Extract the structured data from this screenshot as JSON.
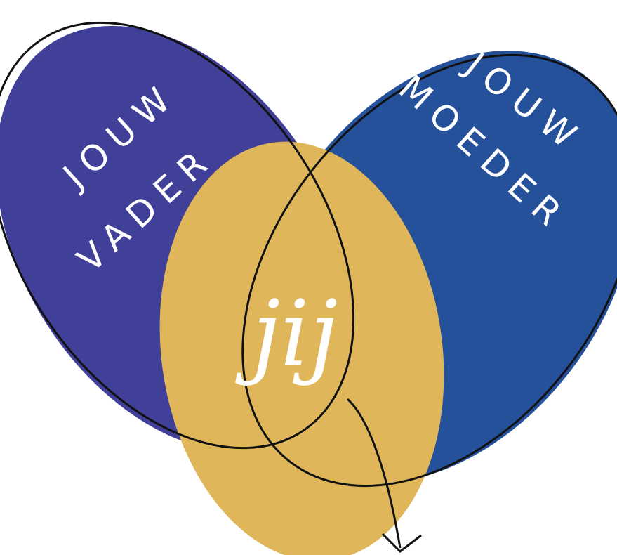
{
  "left": {
    "line1": "JOUW",
    "line2": "VADER"
  },
  "right": {
    "line1": "JOUW",
    "line2": "MOEDER"
  },
  "center": "jij"
}
